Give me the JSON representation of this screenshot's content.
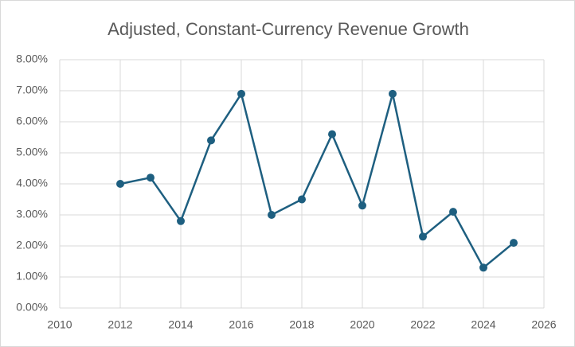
{
  "chart_data": {
    "type": "line",
    "title": "Adjusted, Constant-Currency Revenue Growth",
    "x": [
      2012,
      2013,
      2014,
      2015,
      2016,
      2017,
      2018,
      2019,
      2020,
      2021,
      2022,
      2023,
      2024,
      2025
    ],
    "values": [
      4.0,
      4.2,
      2.8,
      5.4,
      6.9,
      3.0,
      3.5,
      5.6,
      3.3,
      6.9,
      2.3,
      3.1,
      1.3,
      2.1
    ],
    "color": "#1e5f80",
    "xlim": [
      2010,
      2026
    ],
    "xticks": [
      2010,
      2012,
      2014,
      2016,
      2018,
      2020,
      2022,
      2024,
      2026
    ],
    "ylim": [
      0,
      8
    ],
    "yticks": [
      {
        "value": 0,
        "label": "0.00%"
      },
      {
        "value": 1,
        "label": "1.00%"
      },
      {
        "value": 2,
        "label": "2.00%"
      },
      {
        "value": 3,
        "label": "3.00%"
      },
      {
        "value": 4,
        "label": "4.00%"
      },
      {
        "value": 5,
        "label": "5.00%"
      },
      {
        "value": 6,
        "label": "6.00%"
      },
      {
        "value": 7,
        "label": "7.00%"
      },
      {
        "value": 8,
        "label": "8.00%"
      }
    ],
    "grid": true,
    "markers": true
  }
}
